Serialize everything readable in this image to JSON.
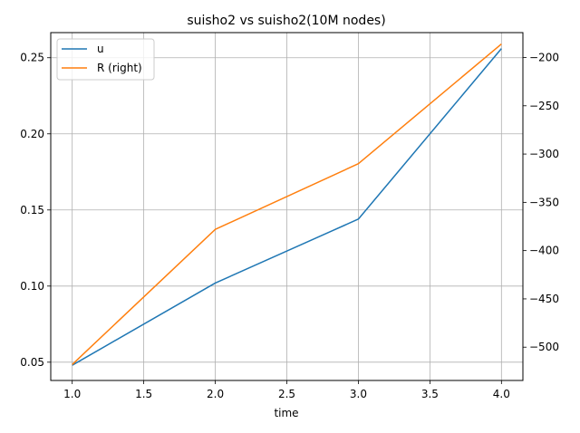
{
  "chart_data": {
    "type": "line",
    "title": "suisho2 vs suisho2(10M nodes)",
    "xlabel": "time",
    "ylabel": "",
    "ylabel_right": "",
    "x": [
      1.0,
      2.0,
      3.0,
      4.0
    ],
    "xlim": [
      0.85,
      4.15
    ],
    "xticks": [
      "1.0",
      "1.5",
      "2.0",
      "2.5",
      "3.0",
      "3.5",
      "4.0"
    ],
    "ylim": [
      0.038,
      0.2665
    ],
    "yticks": [
      "0.05",
      "0.10",
      "0.15",
      "0.20",
      "0.25"
    ],
    "ylim_right": [
      -534.5,
      -174.2
    ],
    "yticks_right": [
      "−200",
      "−250",
      "−300",
      "−350",
      "−400",
      "−450",
      "−500"
    ],
    "grid": true,
    "legend_position": "top-left",
    "series": [
      {
        "name": "u",
        "axis": "left",
        "color": "#1f77b4",
        "values": [
          0.048,
          0.102,
          0.144,
          0.256
        ]
      },
      {
        "name": "R (right)",
        "axis": "right",
        "color": "#ff7f0e",
        "values": [
          -518,
          -378,
          -310,
          -186
        ]
      }
    ]
  }
}
